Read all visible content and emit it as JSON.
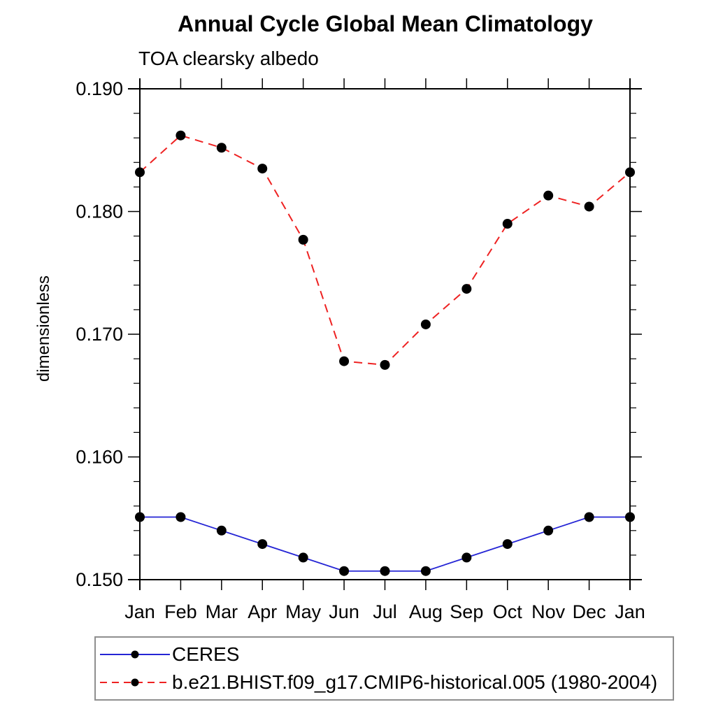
{
  "chart_data": {
    "type": "line",
    "title": "Annual Cycle Global Mean Climatology",
    "subtitle": "TOA clearsky albedo",
    "grid": "off",
    "legend_position": "bottom-left-outside",
    "x_axis": {
      "categories": [
        "Jan",
        "Feb",
        "Mar",
        "Apr",
        "May",
        "Jun",
        "Jul",
        "Aug",
        "Sep",
        "Oct",
        "Nov",
        "Dec",
        "Jan"
      ]
    },
    "y_axis": {
      "label": "dimensionless",
      "range": [
        0.15,
        0.19
      ],
      "tick_values": [
        0.19,
        0.18,
        0.17,
        0.16,
        0.15
      ],
      "tick_labels": [
        "0.190",
        "0.180",
        "0.170",
        "0.160",
        "0.150"
      ],
      "minor_tick_interval": 0.002
    },
    "series": [
      {
        "name": "CERES",
        "color": "#2525d5",
        "line_style": "solid",
        "marker": "filled-circle",
        "marker_color": "#000000",
        "values": [
          0.1551,
          0.1551,
          0.154,
          0.1529,
          0.1518,
          0.1507,
          0.1507,
          0.1507,
          0.1518,
          0.1529,
          0.154,
          0.1551,
          0.1551
        ]
      },
      {
        "name": "b.e21.BHIST.f09_g17.CMIP6-historical.005 (1980-2004)",
        "color": "#ee2222",
        "line_style": "dashed",
        "marker": "filled-circle",
        "marker_color": "#000000",
        "values": [
          0.1832,
          0.1862,
          0.1852,
          0.1835,
          0.1777,
          0.1678,
          0.1675,
          0.1708,
          0.1737,
          0.179,
          0.1813,
          0.1804,
          0.1832
        ]
      }
    ]
  }
}
